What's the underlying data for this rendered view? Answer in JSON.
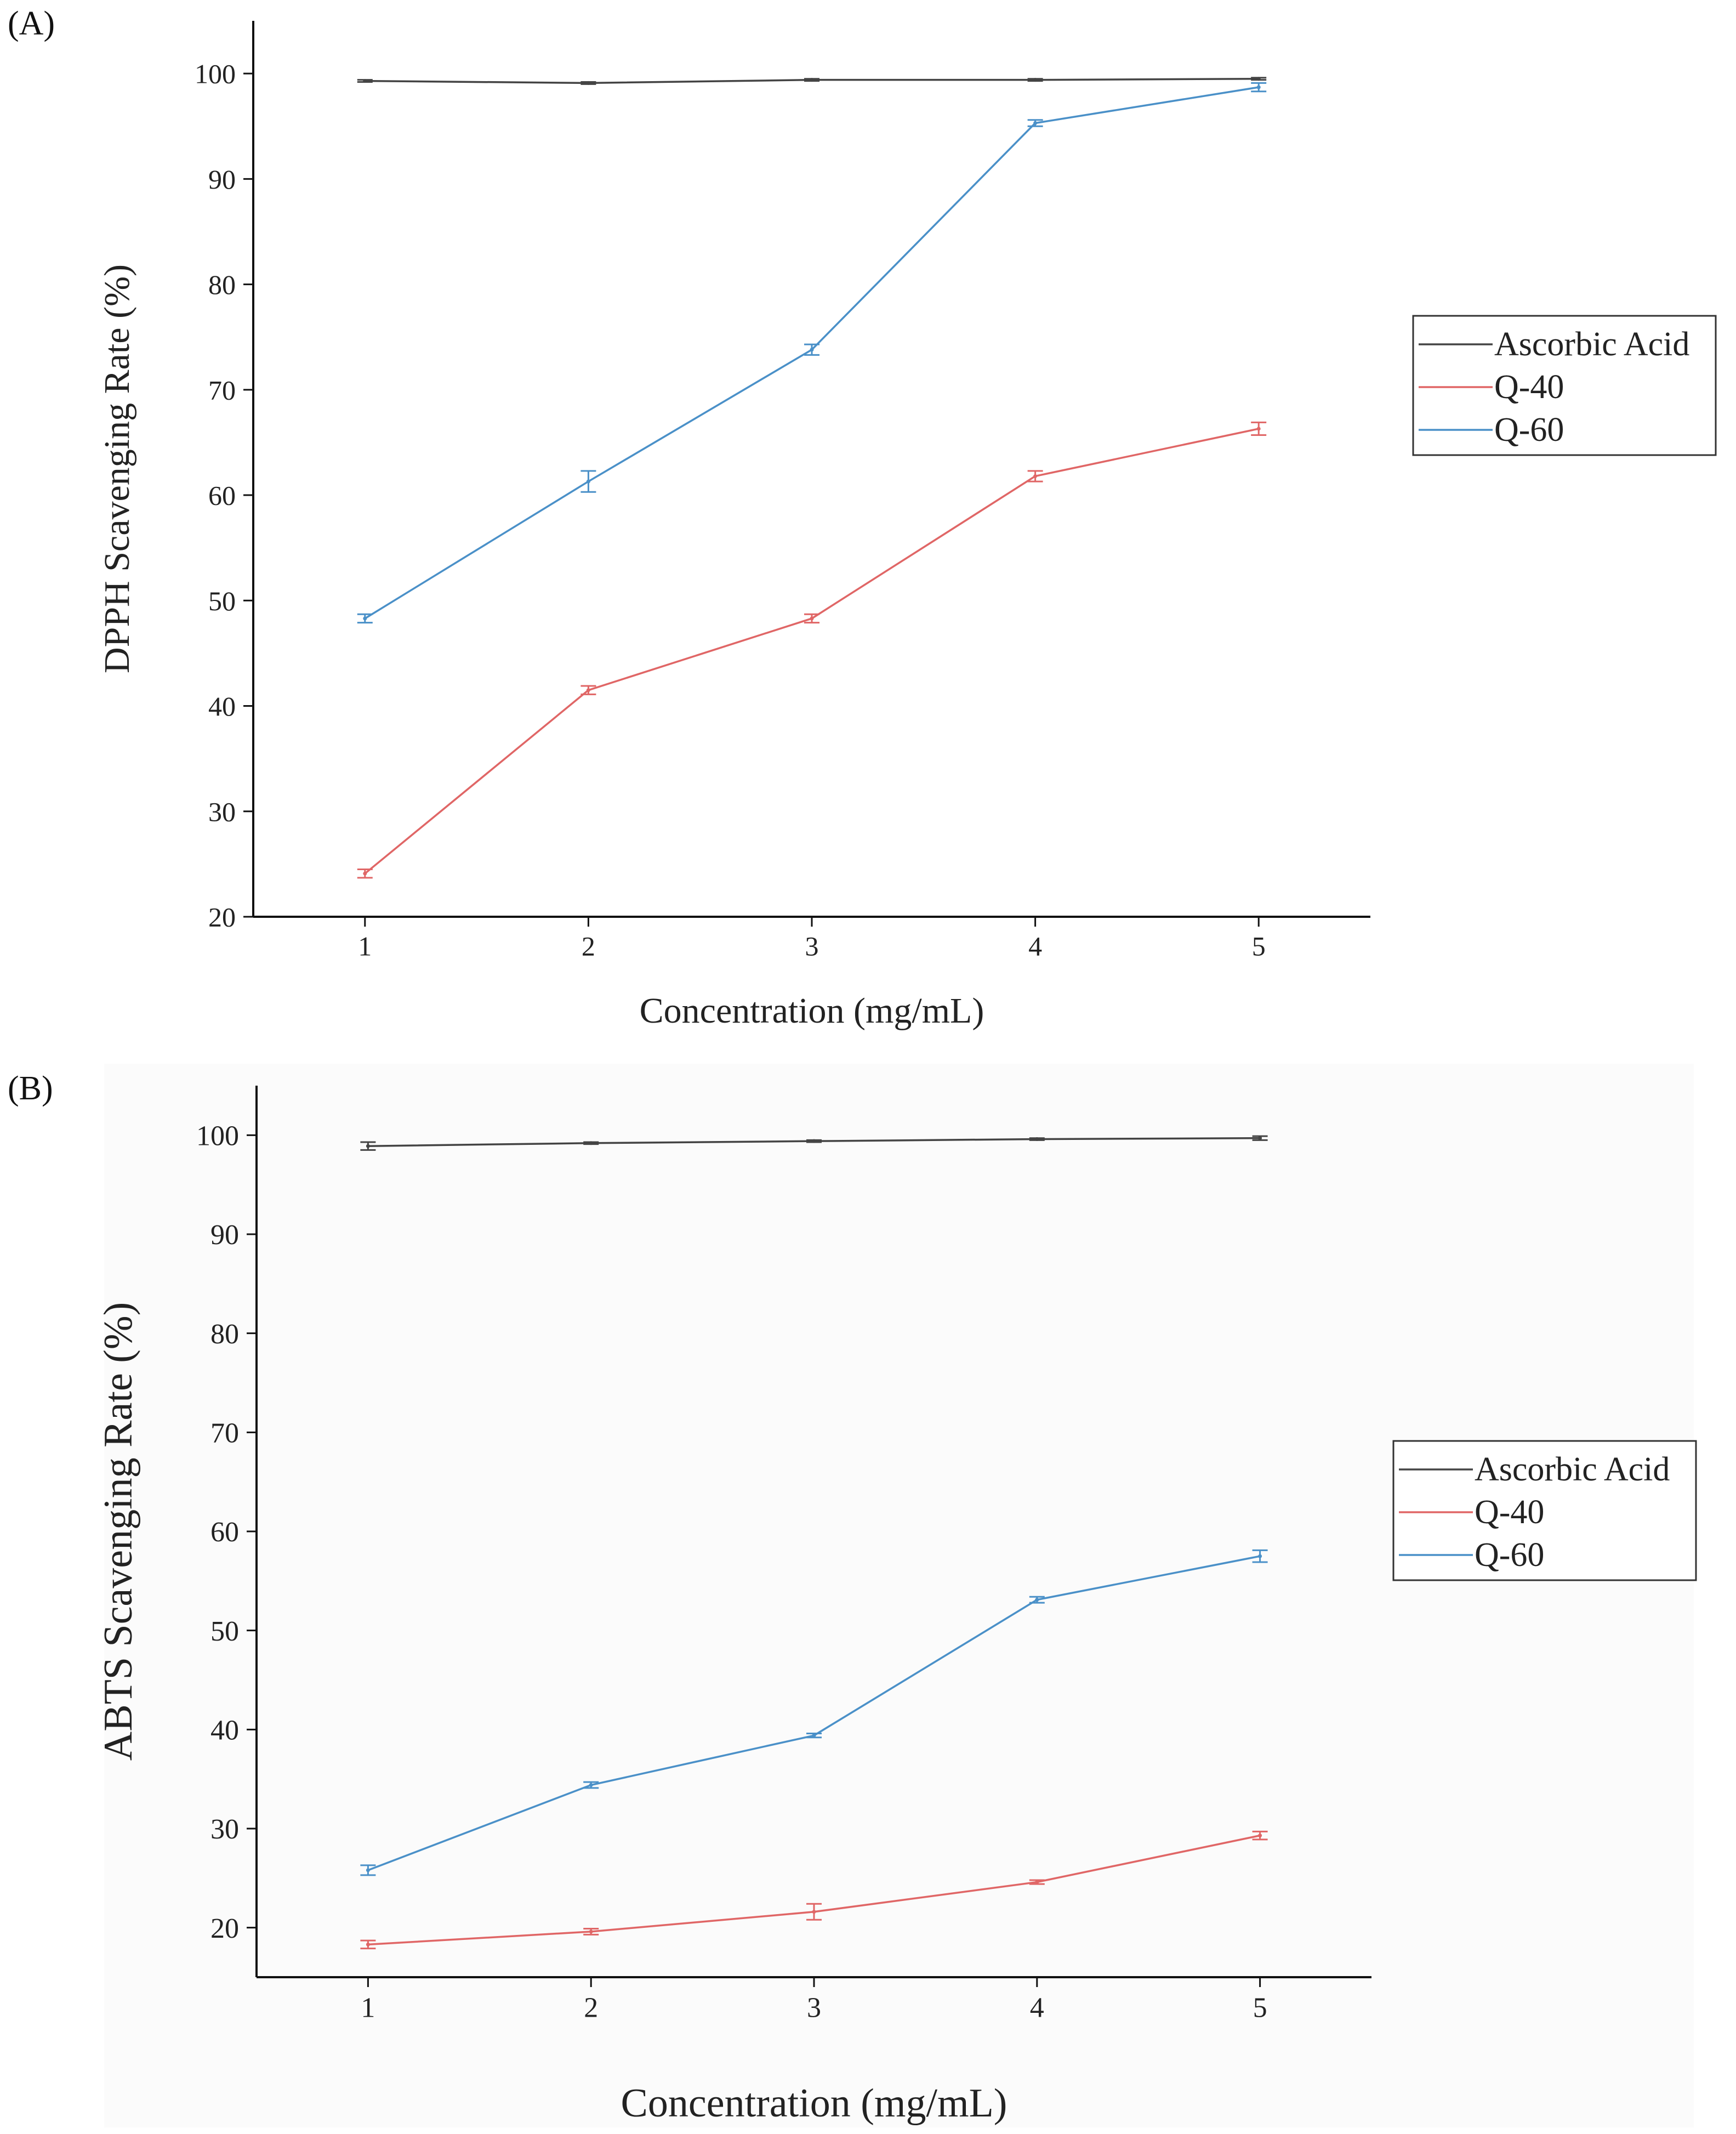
{
  "colors": {
    "ascorbic": "#444444",
    "q40": "#e06666",
    "q60": "#4a90c8",
    "axis": "#111111",
    "legend_border": "#333333",
    "panel_b_background": "#fbfbfb"
  },
  "chart_data": [
    {
      "panel_label": "(A)",
      "type": "line",
      "title": "",
      "xlabel": "Concentration (mg/mL)",
      "ylabel": "DPPH Scavenging Rate (%)",
      "x": [
        1,
        2,
        3,
        4,
        5
      ],
      "x_tick_labels": [
        "1",
        "2",
        "3",
        "4",
        "5"
      ],
      "xlim": [
        0.5,
        5.5
      ],
      "ylim": [
        20,
        105
      ],
      "y_ticks": [
        20,
        30,
        40,
        50,
        60,
        70,
        80,
        90,
        100
      ],
      "y_tick_labels": [
        "20",
        "30",
        "40",
        "50",
        "60",
        "70",
        "80",
        "90",
        "100"
      ],
      "grid": false,
      "legend_position": "right",
      "series": [
        {
          "name": "Ascorbic Acid",
          "color_key": "ascorbic",
          "values": [
            99.3,
            99.1,
            99.4,
            99.4,
            99.5
          ],
          "errors": [
            0.1,
            0.1,
            0.1,
            0.1,
            0.1
          ]
        },
        {
          "name": "Q-40",
          "color_key": "q40",
          "values": [
            24.1,
            41.5,
            48.3,
            61.8,
            66.3
          ],
          "errors": [
            0.4,
            0.4,
            0.4,
            0.5,
            0.6
          ]
        },
        {
          "name": "Q-60",
          "color_key": "q60",
          "values": [
            48.3,
            61.3,
            73.8,
            95.3,
            98.7
          ],
          "errors": [
            0.4,
            1.0,
            0.5,
            0.3,
            0.4
          ]
        }
      ]
    },
    {
      "panel_label": "(B)",
      "type": "line",
      "title": "",
      "xlabel": "Concentration (mg/mL)",
      "ylabel": "ABTS Scavenging Rate (%)",
      "x": [
        1,
        2,
        3,
        4,
        5
      ],
      "x_tick_labels": [
        "1",
        "2",
        "3",
        "4",
        "5"
      ],
      "xlim": [
        0.5,
        5.5
      ],
      "ylim": [
        15,
        105
      ],
      "y_ticks": [
        20,
        30,
        40,
        50,
        60,
        70,
        80,
        90,
        100
      ],
      "y_tick_labels": [
        "20",
        "30",
        "40",
        "50",
        "60",
        "70",
        "80",
        "90",
        "100"
      ],
      "grid": false,
      "legend_position": "right",
      "series": [
        {
          "name": "Ascorbic Acid",
          "color_key": "ascorbic",
          "values": [
            98.9,
            99.2,
            99.4,
            99.6,
            99.7
          ],
          "errors": [
            0.4,
            0.1,
            0.1,
            0.1,
            0.2
          ]
        },
        {
          "name": "Q-40",
          "color_key": "q40",
          "values": [
            18.3,
            19.6,
            21.6,
            24.6,
            29.3
          ],
          "errors": [
            0.4,
            0.3,
            0.8,
            0.2,
            0.4
          ]
        },
        {
          "name": "Q-60",
          "color_key": "q60",
          "values": [
            25.8,
            34.4,
            39.4,
            53.1,
            57.5
          ],
          "errors": [
            0.5,
            0.3,
            0.2,
            0.3,
            0.6
          ]
        }
      ]
    }
  ]
}
